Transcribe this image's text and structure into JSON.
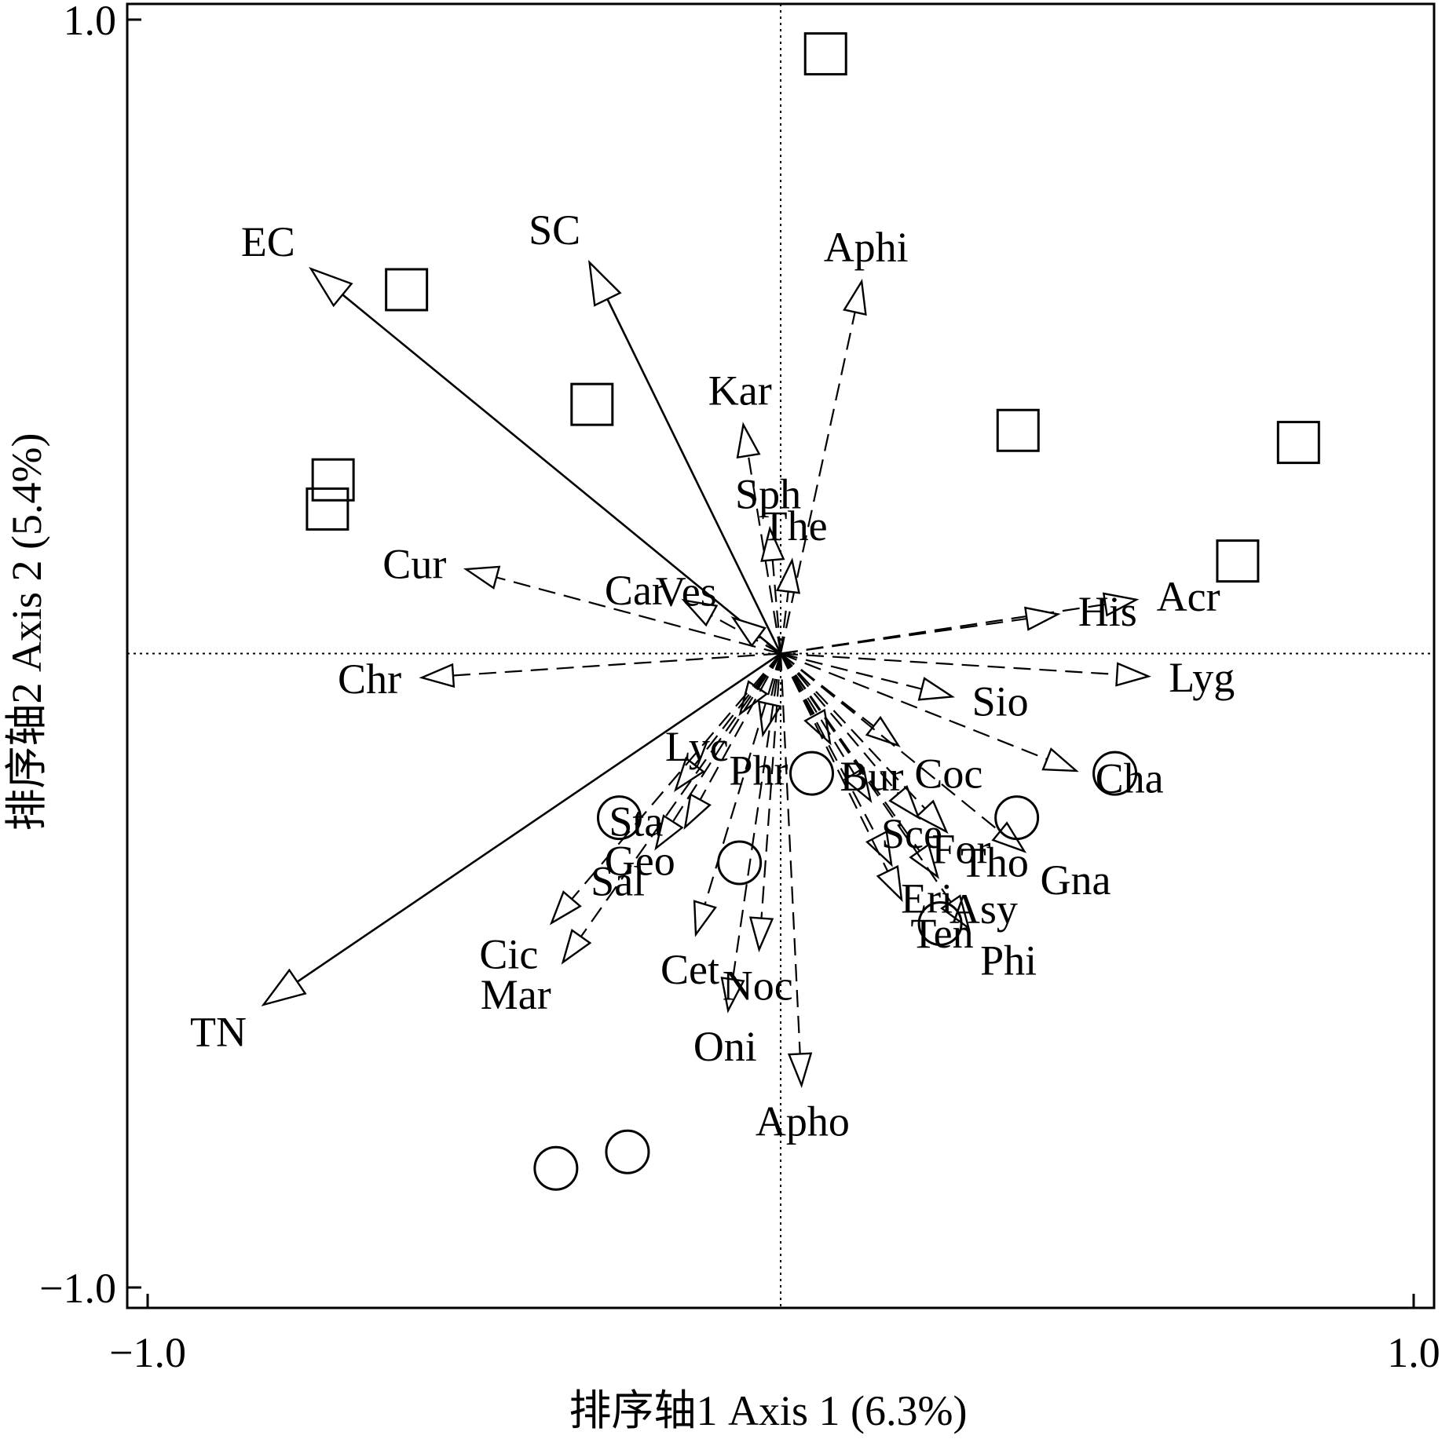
{
  "chart_data": {
    "type": "scatter",
    "subtype": "ordination biplot",
    "xlabel": "排序轴1 Axis 1 (6.3%)",
    "ylabel": "排序轴2 Axis 2 (5.4%)",
    "xlim": [
      -1.0,
      1.0
    ],
    "ylim": [
      -1.0,
      1.0
    ],
    "xticks": [
      {
        "value": -1.0,
        "label": "−1.0"
      },
      {
        "value": 1.0,
        "label": "1.0"
      }
    ],
    "yticks": [
      {
        "value": -1.0,
        "label": "−1.0"
      },
      {
        "value": 1.0,
        "label": "1.0"
      }
    ],
    "grid": false,
    "zero_lines": true,
    "environmental_vectors": [
      {
        "name": "EC",
        "x": -0.742,
        "y": 0.607
      },
      {
        "name": "SC",
        "x": -0.302,
        "y": 0.617
      },
      {
        "name": "TN",
        "x": -0.817,
        "y": -0.554
      }
    ],
    "species_vectors": [
      {
        "name": "Aphi",
        "x": 0.128,
        "y": 0.587
      },
      {
        "name": "Kar",
        "x": -0.059,
        "y": 0.361
      },
      {
        "name": "Sph",
        "x": -0.017,
        "y": 0.197
      },
      {
        "name": "The",
        "x": 0.018,
        "y": 0.147
      },
      {
        "name": "Cur",
        "x": -0.497,
        "y": 0.133
      },
      {
        "name": "Car",
        "x": -0.153,
        "y": 0.084
      },
      {
        "name": "Ves",
        "x": -0.075,
        "y": 0.056
      },
      {
        "name": "Chr",
        "x": -0.567,
        "y": -0.038
      },
      {
        "name": "Acr",
        "x": 0.562,
        "y": 0.085
      },
      {
        "name": "His",
        "x": 0.438,
        "y": 0.062
      },
      {
        "name": "Lyg",
        "x": 0.581,
        "y": -0.036
      },
      {
        "name": "Sio",
        "x": 0.271,
        "y": -0.068
      },
      {
        "name": "Cha",
        "x": 0.467,
        "y": -0.185
      },
      {
        "name": "Coc",
        "x": 0.186,
        "y": -0.145
      },
      {
        "name": "Gna",
        "x": 0.385,
        "y": -0.312
      },
      {
        "name": "Lyc",
        "x": -0.064,
        "y": -0.095
      },
      {
        "name": "Phr",
        "x": -0.028,
        "y": -0.128
      },
      {
        "name": "Bur",
        "x": 0.078,
        "y": -0.141
      },
      {
        "name": "Sta",
        "x": -0.166,
        "y": -0.215
      },
      {
        "name": "Sce",
        "x": 0.142,
        "y": -0.232
      },
      {
        "name": "For",
        "x": 0.218,
        "y": -0.259
      },
      {
        "name": "Tho",
        "x": 0.262,
        "y": -0.281
      },
      {
        "name": "Geo",
        "x": -0.151,
        "y": -0.274
      },
      {
        "name": "Sal",
        "x": -0.197,
        "y": -0.307
      },
      {
        "name": "Eri",
        "x": 0.175,
        "y": -0.333
      },
      {
        "name": "Asy",
        "x": 0.248,
        "y": -0.352
      },
      {
        "name": "Cic",
        "x": -0.362,
        "y": -0.425
      },
      {
        "name": "Cet",
        "x": -0.134,
        "y": -0.443
      },
      {
        "name": "Ten",
        "x": 0.191,
        "y": -0.388
      },
      {
        "name": "Mar",
        "x": -0.344,
        "y": -0.487
      },
      {
        "name": "Noc",
        "x": -0.034,
        "y": -0.467
      },
      {
        "name": "Phi",
        "x": 0.297,
        "y": -0.433
      },
      {
        "name": "Oni",
        "x": -0.083,
        "y": -0.563
      },
      {
        "name": "Apho",
        "x": 0.033,
        "y": -0.681
      }
    ],
    "sites_square": [
      {
        "x": 0.071,
        "y": 0.946
      },
      {
        "x": -0.591,
        "y": 0.574
      },
      {
        "x": -0.298,
        "y": 0.393
      },
      {
        "x": -0.707,
        "y": 0.274
      },
      {
        "x": -0.716,
        "y": 0.228
      },
      {
        "x": 0.375,
        "y": 0.352
      },
      {
        "x": 0.818,
        "y": 0.333
      },
      {
        "x": 0.722,
        "y": 0.146
      }
    ],
    "sites_circle": [
      {
        "x": 0.528,
        "y": -0.189
      },
      {
        "x": 0.049,
        "y": -0.189
      },
      {
        "x": 0.373,
        "y": -0.259
      },
      {
        "x": -0.255,
        "y": -0.259
      },
      {
        "x": -0.065,
        "y": -0.33
      },
      {
        "x": 0.252,
        "y": -0.426
      },
      {
        "x": -0.242,
        "y": -0.786
      },
      {
        "x": -0.355,
        "y": -0.812
      }
    ]
  }
}
